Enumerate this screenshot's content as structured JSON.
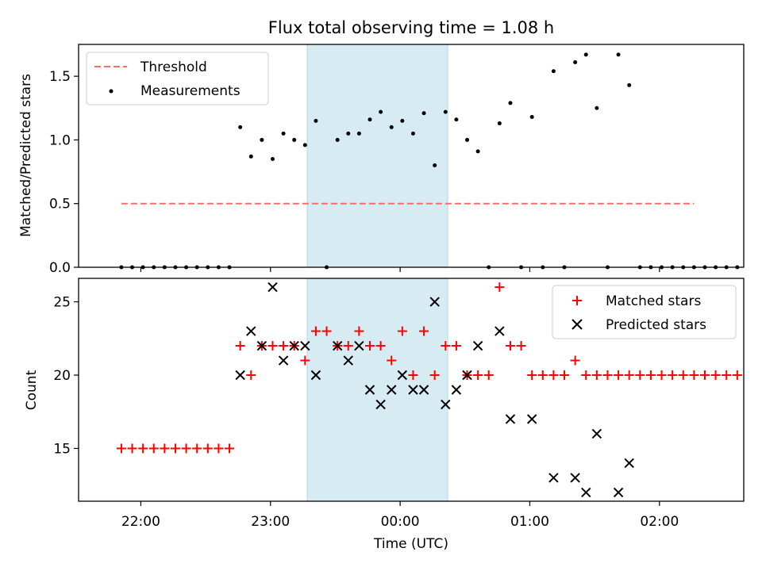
{
  "figure": {
    "title": "Flux total observing time = 1.08 h"
  },
  "chart_data": [
    {
      "type": "scatter",
      "panel": "top",
      "ylabel": "Matched/Predicted stars",
      "ylim": [
        0,
        1.75
      ],
      "yticks": [
        0.0,
        0.5,
        1.0,
        1.5
      ],
      "ytick_labels": [
        "0.0",
        "0.5",
        "1.0",
        "1.5"
      ],
      "xlim_hours": [
        21.52,
        26.65
      ],
      "highlight_span": {
        "start": "23:17",
        "end": "00:22",
        "color": "#add8e6"
      },
      "legend": {
        "position": "top-left",
        "entries": [
          "Threshold",
          "Measurements"
        ]
      },
      "threshold": {
        "name": "Threshold",
        "value": 0.5,
        "x_from": "21:51",
        "x_to": "02:16",
        "color": "#ff6b6b",
        "style": "dashed"
      },
      "series": [
        {
          "name": "Measurements",
          "color": "#000000",
          "points": [
            [
              "21:51",
              0
            ],
            [
              "21:56",
              0
            ],
            [
              "22:01",
              0
            ],
            [
              "22:06",
              0
            ],
            [
              "22:11",
              0
            ],
            [
              "22:16",
              0
            ],
            [
              "22:21",
              0
            ],
            [
              "22:26",
              0
            ],
            [
              "22:31",
              0
            ],
            [
              "22:36",
              0
            ],
            [
              "22:41",
              0
            ],
            [
              "22:46",
              1.1
            ],
            [
              "22:51",
              0.87
            ],
            [
              "22:56",
              1.0
            ],
            [
              "23:01",
              0.85
            ],
            [
              "23:06",
              1.05
            ],
            [
              "23:11",
              1.0
            ],
            [
              "23:16",
              0.96
            ],
            [
              "23:21",
              1.15
            ],
            [
              "23:26",
              0.0
            ],
            [
              "23:31",
              1.0
            ],
            [
              "23:36",
              1.05
            ],
            [
              "23:41",
              1.05
            ],
            [
              "23:46",
              1.16
            ],
            [
              "23:51",
              1.22
            ],
            [
              "23:56",
              1.1
            ],
            [
              "00:01",
              1.15
            ],
            [
              "00:06",
              1.05
            ],
            [
              "00:11",
              1.21
            ],
            [
              "00:16",
              0.8
            ],
            [
              "00:21",
              1.22
            ],
            [
              "00:26",
              1.16
            ],
            [
              "00:31",
              1.0
            ],
            [
              "00:36",
              0.91
            ],
            [
              "00:41",
              0.0
            ],
            [
              "00:46",
              1.13
            ],
            [
              "00:51",
              1.29
            ],
            [
              "00:56",
              0.0
            ],
            [
              "01:01",
              1.18
            ],
            [
              "01:06",
              0.0
            ],
            [
              "01:11",
              1.54
            ],
            [
              "01:16",
              0.0
            ],
            [
              "01:21",
              1.61
            ],
            [
              "01:26",
              1.67
            ],
            [
              "01:31",
              1.25
            ],
            [
              "01:36",
              0.0
            ],
            [
              "01:41",
              1.67
            ],
            [
              "01:46",
              1.43
            ],
            [
              "01:51",
              0.0
            ],
            [
              "01:56",
              0.0
            ],
            [
              "02:01",
              0.0
            ],
            [
              "02:06",
              0.0
            ],
            [
              "02:11",
              0.0
            ],
            [
              "02:16",
              0.0
            ],
            [
              "02:21",
              0.0
            ],
            [
              "02:26",
              0.0
            ],
            [
              "02:31",
              0.0
            ],
            [
              "02:36",
              0.0
            ]
          ]
        }
      ]
    },
    {
      "type": "scatter",
      "panel": "bottom",
      "ylabel": "Count",
      "xlabel": "Time (UTC)",
      "ylim": [
        11.4,
        26.6
      ],
      "yticks": [
        15,
        20,
        25
      ],
      "ytick_labels": [
        "15",
        "20",
        "25"
      ],
      "xlim_hours": [
        21.52,
        26.65
      ],
      "xticks": [
        "22:00",
        "23:00",
        "00:00",
        "01:00",
        "02:00"
      ],
      "highlight_span": {
        "start": "23:17",
        "end": "00:22",
        "color": "#add8e6"
      },
      "legend": {
        "position": "top-right",
        "entries": [
          "Matched stars",
          "Predicted stars"
        ]
      },
      "series": [
        {
          "name": "Matched stars",
          "marker": "plus",
          "color": "#ff0000",
          "points": [
            [
              "21:51",
              15
            ],
            [
              "21:56",
              15
            ],
            [
              "22:01",
              15
            ],
            [
              "22:06",
              15
            ],
            [
              "22:11",
              15
            ],
            [
              "22:16",
              15
            ],
            [
              "22:21",
              15
            ],
            [
              "22:26",
              15
            ],
            [
              "22:31",
              15
            ],
            [
              "22:36",
              15
            ],
            [
              "22:41",
              15
            ],
            [
              "22:46",
              22
            ],
            [
              "22:51",
              20
            ],
            [
              "22:56",
              22
            ],
            [
              "23:01",
              22
            ],
            [
              "23:06",
              22
            ],
            [
              "23:11",
              22
            ],
            [
              "23:16",
              21
            ],
            [
              "23:21",
              23
            ],
            [
              "23:26",
              23
            ],
            [
              "23:31",
              22
            ],
            [
              "23:36",
              22
            ],
            [
              "23:41",
              23
            ],
            [
              "23:46",
              22
            ],
            [
              "23:51",
              22
            ],
            [
              "23:56",
              21
            ],
            [
              "00:01",
              23
            ],
            [
              "00:06",
              20
            ],
            [
              "00:11",
              23
            ],
            [
              "00:16",
              20
            ],
            [
              "00:21",
              22
            ],
            [
              "00:26",
              22
            ],
            [
              "00:31",
              20
            ],
            [
              "00:36",
              20
            ],
            [
              "00:41",
              20
            ],
            [
              "00:46",
              26
            ],
            [
              "00:51",
              22
            ],
            [
              "00:56",
              22
            ],
            [
              "01:01",
              20
            ],
            [
              "01:06",
              20
            ],
            [
              "01:11",
              20
            ],
            [
              "01:16",
              20
            ],
            [
              "01:21",
              21
            ],
            [
              "01:26",
              20
            ],
            [
              "01:31",
              20
            ],
            [
              "01:36",
              20
            ],
            [
              "01:41",
              20
            ],
            [
              "01:46",
              20
            ],
            [
              "01:51",
              20
            ],
            [
              "01:56",
              20
            ],
            [
              "02:01",
              20
            ],
            [
              "02:06",
              20
            ],
            [
              "02:11",
              20
            ],
            [
              "02:16",
              20
            ],
            [
              "02:21",
              20
            ],
            [
              "02:26",
              20
            ],
            [
              "02:31",
              20
            ],
            [
              "02:36",
              20
            ]
          ]
        },
        {
          "name": "Predicted stars",
          "marker": "x",
          "color": "#000000",
          "points": [
            [
              "22:46",
              20
            ],
            [
              "22:51",
              23
            ],
            [
              "22:56",
              22
            ],
            [
              "23:01",
              26
            ],
            [
              "23:06",
              21
            ],
            [
              "23:11",
              22
            ],
            [
              "23:16",
              22
            ],
            [
              "23:21",
              20
            ],
            [
              "23:31",
              22
            ],
            [
              "23:36",
              21
            ],
            [
              "23:41",
              22
            ],
            [
              "23:46",
              19
            ],
            [
              "23:51",
              18
            ],
            [
              "23:56",
              19
            ],
            [
              "00:01",
              20
            ],
            [
              "00:06",
              19
            ],
            [
              "00:11",
              19
            ],
            [
              "00:16",
              25
            ],
            [
              "00:21",
              18
            ],
            [
              "00:26",
              19
            ],
            [
              "00:31",
              20
            ],
            [
              "00:36",
              22
            ],
            [
              "00:46",
              23
            ],
            [
              "00:51",
              17
            ],
            [
              "01:01",
              17
            ],
            [
              "01:11",
              13
            ],
            [
              "01:21",
              13
            ],
            [
              "01:26",
              12
            ],
            [
              "01:31",
              16
            ],
            [
              "01:41",
              12
            ],
            [
              "01:46",
              14
            ]
          ]
        }
      ]
    }
  ]
}
